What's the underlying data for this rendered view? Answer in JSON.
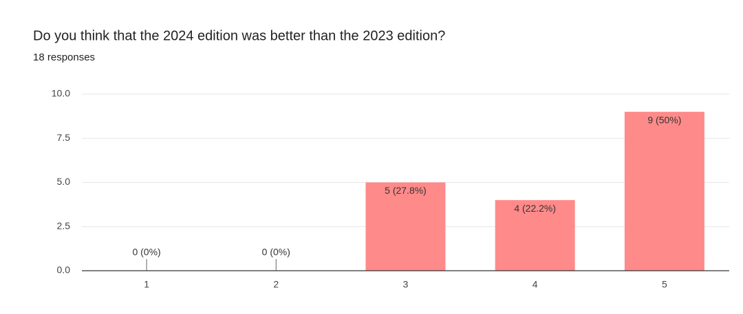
{
  "chart_data": {
    "type": "bar",
    "title": "Do you think that the 2024 edition was better than the 2023 edition?",
    "subtitle": "18 responses",
    "categories": [
      "1",
      "2",
      "3",
      "4",
      "5"
    ],
    "values": [
      0,
      0,
      5,
      4,
      9
    ],
    "value_labels": [
      "0 (0%)",
      "0 (0%)",
      "5 (27.8%)",
      "4 (22.2%)",
      "9 (50%)"
    ],
    "color": "#ff8a8a",
    "ylim": [
      0,
      10
    ],
    "yticks": [
      {
        "value": 0,
        "label": "0.0"
      },
      2.5,
      {
        "value": 5,
        "label": "5.0"
      },
      7.5,
      {
        "value": 10,
        "label": "10.0"
      }
    ],
    "grid": true
  }
}
